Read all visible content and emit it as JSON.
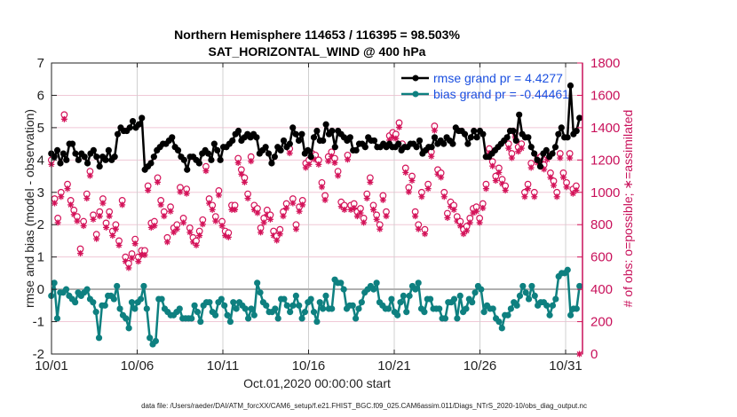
{
  "chart_data": {
    "type": "line",
    "title": "Northern Hemisphere 114653 / 116395 = 98.503%",
    "subtitle": "SAT_HORIZONTAL_WIND @ 400 hPa",
    "xlabel": "Oct.01,2020 00:00:00 start",
    "ylabel": "rmse and bias (model - observation)",
    "y2label": "# of obs: o=possible; ∗=assimilated",
    "footer": "data file: /Users/raeder/DAI/ATM_forcXX/CAM6_setup/f.e21.FHIST_BGC.f09_025.CAM6assim.011/Diags_NTrS_2020-10/obs_diag_output.nc",
    "xlim": [
      0,
      31
    ],
    "ylim": [
      -2,
      7
    ],
    "y2lim": [
      0,
      1800
    ],
    "grid": true,
    "legend_position": "top-right",
    "x_ticks": [
      {
        "day": 0,
        "label": "10/01"
      },
      {
        "day": 5,
        "label": "10/06"
      },
      {
        "day": 10,
        "label": "10/11"
      },
      {
        "day": 15,
        "label": "10/16"
      },
      {
        "day": 20,
        "label": "10/21"
      },
      {
        "day": 25,
        "label": "10/26"
      },
      {
        "day": 30,
        "label": "10/31"
      }
    ],
    "y_ticks": [
      "-2",
      "-1",
      "0",
      "1",
      "2",
      "3",
      "4",
      "5",
      "6",
      "7"
    ],
    "y2_ticks": [
      "0",
      "200",
      "400",
      "600",
      "800",
      "1000",
      "1200",
      "1400",
      "1600",
      "1800"
    ],
    "colors": {
      "rmse": "#000000",
      "bias": "#0e8080",
      "obs": "#d4145a",
      "legend_text": "#1a4fe0",
      "zero_line": "#b0b0b0",
      "grid_x": "#d0d0d0",
      "grid_y": "#f0c8d6"
    },
    "series": [
      {
        "name": "rmse grand pr = 4.4277",
        "axis": "left",
        "values": [
          4.2,
          4.1,
          4.3,
          3.9,
          4.2,
          4.0,
          4.5,
          4.5,
          4.2,
          4.0,
          4.2,
          4.1,
          3.9,
          4.2,
          4.3,
          4.1,
          3.8,
          4.1,
          4.0,
          4.3,
          4.0,
          4.1,
          4.8,
          5.0,
          4.9,
          4.9,
          5.0,
          5.2,
          5.0,
          5.1,
          5.3,
          3.7,
          3.8,
          3.9,
          4.1,
          4.3,
          4.4,
          4.5,
          4.5,
          4.6,
          4.7,
          4.4,
          4.3,
          4.1,
          4.0,
          3.7,
          4.1,
          4.1,
          4.0,
          3.9,
          4.2,
          4.3,
          4.2,
          4.0,
          4.5,
          4.3,
          4.0,
          4.4,
          4.4,
          4.5,
          4.6,
          4.8,
          4.9,
          4.6,
          4.7,
          4.8,
          4.7,
          4.8,
          4.7,
          4.2,
          4.3,
          4.4,
          4.2,
          3.9,
          4.1,
          4.4,
          4.3,
          4.6,
          4.4,
          4.5,
          5.0,
          4.8,
          4.6,
          4.8,
          4.2,
          4.3,
          4.1,
          4.7,
          4.9,
          4.6,
          4.6,
          5.1,
          4.8,
          4.9,
          4.4,
          4.9,
          4.8,
          4.7,
          4.6,
          4.7,
          4.3,
          4.3,
          4.5,
          4.5,
          4.4,
          4.7,
          4.6,
          4.6,
          4.4,
          4.4,
          4.5,
          4.4,
          4.5,
          4.4,
          4.4,
          4.5,
          4.3,
          4.4,
          4.4,
          4.5,
          4.5,
          4.4,
          4.6,
          4.2,
          4.3,
          4.4,
          4.4,
          4.7,
          4.5,
          4.6,
          4.5,
          4.7,
          4.6,
          4.5,
          5.0,
          4.9,
          4.9,
          4.8,
          4.5,
          4.7,
          4.9,
          4.7,
          4.9,
          4.8,
          4.1,
          4.1,
          4.2,
          4.3,
          4.4,
          4.5,
          4.6,
          4.7,
          4.9,
          4.9,
          4.6,
          5.4,
          4.8,
          4.7,
          4.7,
          4.4,
          4.2,
          4.0,
          3.8,
          4.2,
          4.3,
          4.1,
          4.2,
          4.4,
          4.8,
          5.0,
          4.7,
          4.7,
          6.3,
          4.8,
          4.9,
          5.3
        ]
      },
      {
        "name": "bias grand pr = -0.44461",
        "axis": "left",
        "values": [
          -0.2,
          0.2,
          -0.9,
          -0.1,
          -0.1,
          0.0,
          -0.2,
          -0.3,
          -0.4,
          -0.1,
          -0.2,
          -0.1,
          0.0,
          -0.3,
          -0.4,
          -0.7,
          -1.5,
          -0.5,
          -0.5,
          -0.2,
          -0.2,
          -0.3,
          0.1,
          -0.6,
          -0.8,
          -0.9,
          -1.2,
          -0.4,
          -0.6,
          -0.4,
          -0.3,
          0.1,
          -0.6,
          -1.5,
          -1.7,
          -1.6,
          -0.3,
          -0.3,
          -0.6,
          -0.7,
          -0.8,
          -0.8,
          -0.7,
          -0.6,
          -0.9,
          -0.9,
          -0.9,
          -0.9,
          -0.5,
          -0.7,
          -1.0,
          -0.5,
          -0.4,
          -0.4,
          -0.7,
          -0.8,
          -0.4,
          -0.3,
          -0.5,
          -0.8,
          -1.0,
          -0.4,
          -0.6,
          -0.4,
          -0.5,
          -0.6,
          -0.9,
          -0.6,
          -0.8,
          0.2,
          -0.1,
          -0.4,
          -0.5,
          -0.7,
          -0.7,
          -0.6,
          -0.9,
          -0.3,
          -0.3,
          -0.5,
          -0.7,
          -0.5,
          -0.2,
          -0.5,
          -0.9,
          -0.7,
          -0.4,
          -0.3,
          -0.7,
          -1.0,
          -0.4,
          -0.6,
          -0.2,
          -0.6,
          -0.6,
          0.3,
          0.2,
          0.2,
          0.0,
          -0.6,
          -0.5,
          -0.5,
          -0.9,
          -0.6,
          -0.4,
          -0.1,
          0.0,
          0.1,
          0.0,
          0.2,
          -0.4,
          -0.5,
          -0.6,
          -0.6,
          -0.3,
          -0.7,
          -0.8,
          -0.4,
          -0.2,
          -0.7,
          -0.2,
          0.1,
          0.0,
          0.2,
          -0.6,
          -0.7,
          -0.3,
          -0.3,
          -0.6,
          -0.6,
          -0.6,
          -0.9,
          -0.9,
          -0.4,
          -0.4,
          -0.3,
          -0.9,
          -0.2,
          -0.7,
          -0.6,
          -0.3,
          -0.4,
          -0.1,
          0.1,
          0.0,
          -0.7,
          -0.5,
          -0.6,
          -0.6,
          -0.9,
          -1.0,
          -1.2,
          -0.8,
          -0.8,
          -0.6,
          -0.4,
          -0.5,
          -0.2,
          0.1,
          -0.1,
          -0.3,
          0.1,
          -0.2,
          -0.5,
          -0.4,
          -0.4,
          -0.5,
          -0.8,
          -0.5,
          -0.3,
          0.4,
          0.5,
          0.5,
          0.6,
          -0.8,
          -0.6,
          -0.6,
          0.1
        ]
      },
      {
        "name": "obs possible (o)",
        "axis": "right",
        "values": [
          1200,
          960,
          840,
          1000,
          1480,
          1050,
          950,
          890,
          850,
          650,
          820,
          990,
          1130,
          860,
          740,
          880,
          960,
          810,
          880,
          760,
          800,
          700,
          950,
          600,
          560,
          620,
          710,
          600,
          640,
          640,
          1040,
          810,
          820,
          1090,
          950,
          880,
          720,
          910,
          780,
          800,
          1030,
          840,
          1020,
          780,
          720,
          700,
          760,
          830,
          1160,
          960,
          920,
          850,
          1010,
          820,
          760,
          750,
          920,
          920,
          1210,
          1140,
          1090,
          990,
          1220,
          920,
          900,
          780,
          840,
          890,
          860,
          760,
          730,
          770,
          880,
          930,
          1270,
          960,
          800,
          910,
          950,
          1180,
          1200,
          1240,
          1230,
          1200,
          1060,
          980,
          1220,
          1250,
          1210,
          1130,
          940,
          920,
          1230,
          920,
          930,
          880,
          900,
          840,
          990,
          1090,
          920,
          860,
          800,
          980,
          880,
          1350,
          1370,
          1360,
          1430,
          1300,
          1150,
          1030,
          1100,
          880,
          800,
          1000,
          770,
          1050,
          1250,
          1410,
          1140,
          1120,
          1000,
          870,
          940,
          920,
          850,
          820,
          770,
          790,
          840,
          900,
          910,
          840,
          930,
          1050,
          1270,
          1190,
          1100,
          1150,
          1080,
          1040,
          1300,
          1240,
          1370,
          1280,
          1300,
          1000,
          1050,
          1180,
          1000,
          1210,
          1220,
          1170,
          1230,
          1120,
          1070,
          1000,
          1240,
          1120,
          1060,
          1240,
          1020,
          1040,
          0
        ]
      }
    ]
  }
}
